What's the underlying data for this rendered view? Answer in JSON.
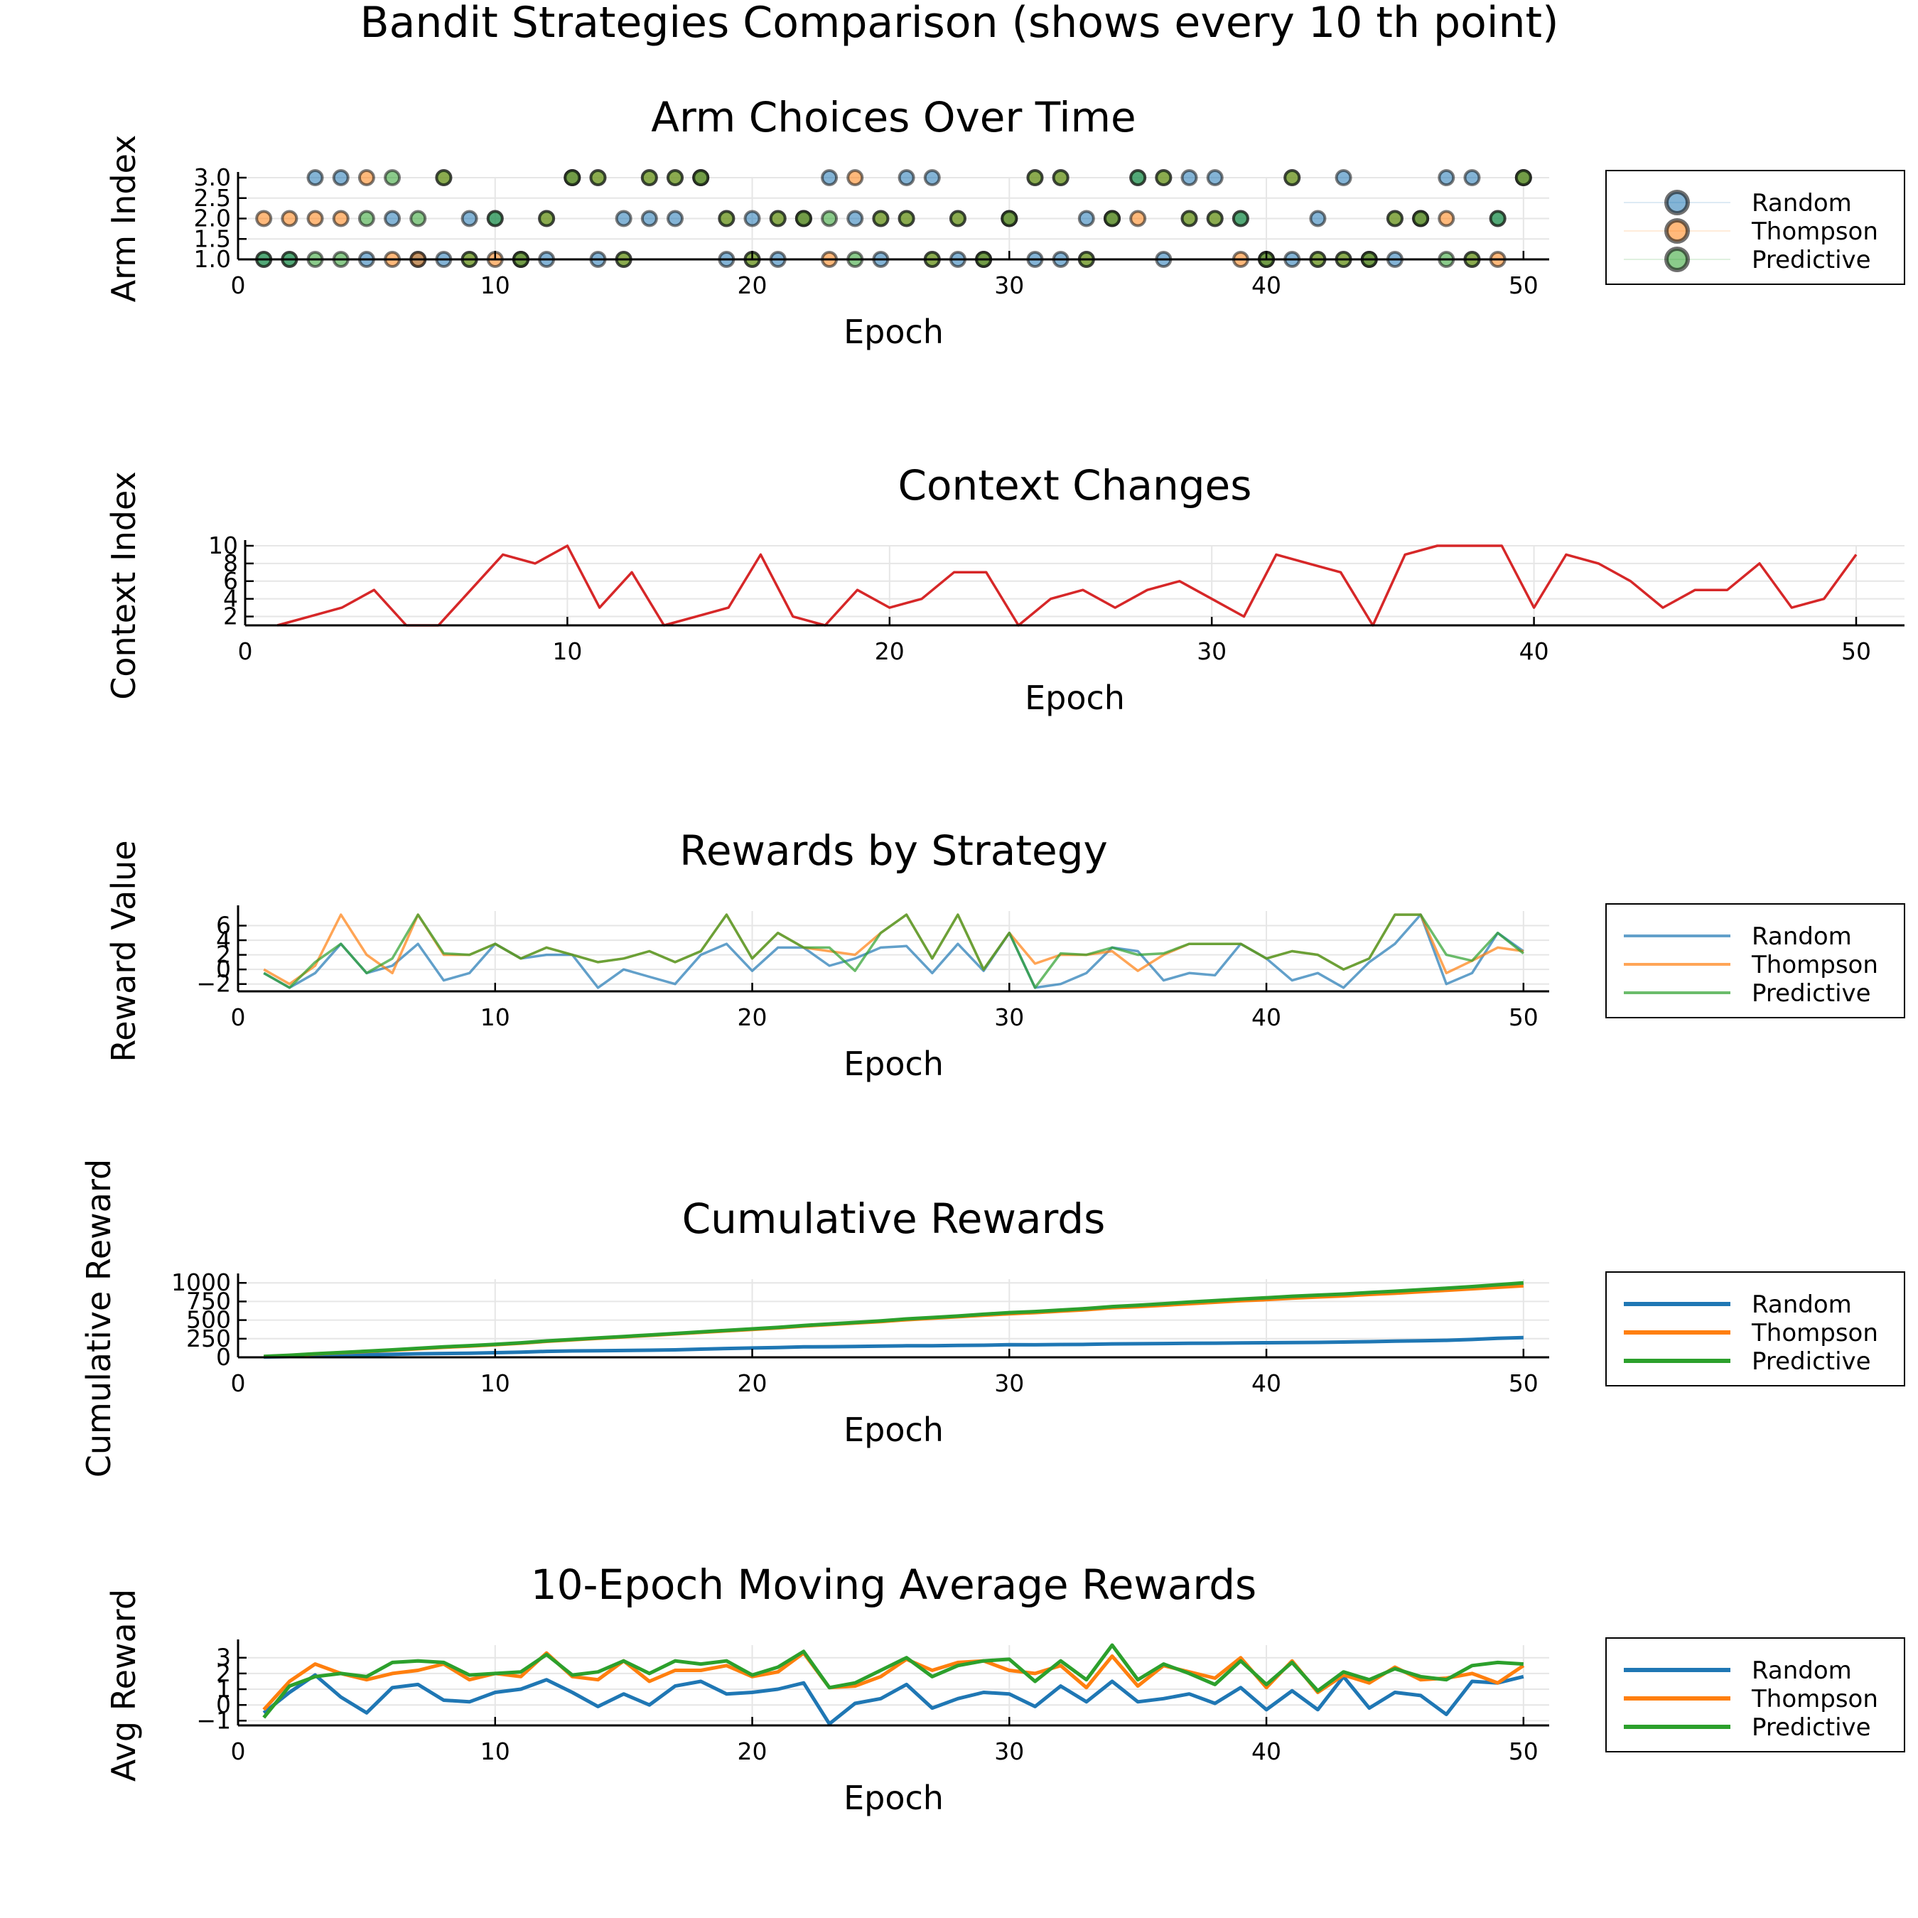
{
  "figure": {
    "title": "Bandit Strategies Comparison (shows every 10 th point)"
  },
  "colors": {
    "random": "#1f77b4",
    "thompson": "#ff7f0e",
    "predictive": "#2ca02c",
    "context": "#d62728"
  },
  "chart_data": [
    {
      "id": "arm",
      "type": "scatter",
      "title": "Arm Choices Over Time",
      "xlabel": "Epoch",
      "ylabel": "Arm Index",
      "xlim": [
        0,
        51
      ],
      "ylim": [
        1.0,
        3.0
      ],
      "xticks": [
        0,
        10,
        20,
        30,
        40,
        50
      ],
      "yticks": [
        1.0,
        1.5,
        2.0,
        2.5,
        3.0
      ],
      "ytick_labels": [
        "1.0",
        "1.5",
        "2.0",
        "2.5",
        "3.0"
      ],
      "legend": "right",
      "grid": true,
      "x": [
        1,
        2,
        3,
        4,
        5,
        6,
        7,
        8,
        9,
        10,
        11,
        12,
        13,
        14,
        15,
        16,
        17,
        18,
        19,
        20,
        21,
        22,
        23,
        24,
        25,
        26,
        27,
        28,
        29,
        30,
        31,
        32,
        33,
        34,
        35,
        36,
        37,
        38,
        39,
        40,
        41,
        42,
        43,
        44,
        45,
        46,
        47,
        48,
        49,
        50
      ],
      "series": [
        {
          "name": "Random",
          "color": "#1f77b4",
          "values": [
            1,
            1,
            3,
            3,
            1,
            2,
            1,
            1,
            2,
            2,
            1,
            1,
            3,
            1,
            2,
            2,
            2,
            3,
            1,
            2,
            1,
            2,
            3,
            2,
            1,
            3,
            3,
            1,
            1,
            2,
            1,
            1,
            2,
            2,
            3,
            1,
            3,
            3,
            2,
            1,
            1,
            2,
            3,
            1,
            1,
            2,
            3,
            3,
            2,
            3
          ]
        },
        {
          "name": "Thompson",
          "color": "#ff7f0e",
          "values": [
            2,
            2,
            2,
            2,
            3,
            1,
            1,
            3,
            1,
            1,
            1,
            2,
            3,
            3,
            1,
            3,
            3,
            3,
            2,
            1,
            2,
            2,
            1,
            3,
            2,
            2,
            1,
            2,
            1,
            2,
            3,
            3,
            1,
            2,
            2,
            3,
            2,
            2,
            1,
            1,
            3,
            1,
            1,
            1,
            2,
            2,
            2,
            1,
            1,
            3
          ]
        },
        {
          "name": "Predictive",
          "color": "#2ca02c",
          "values": [
            1,
            1,
            1,
            1,
            2,
            3,
            2,
            3,
            1,
            2,
            1,
            2,
            3,
            3,
            1,
            3,
            3,
            3,
            2,
            1,
            2,
            2,
            2,
            1,
            2,
            2,
            1,
            2,
            1,
            2,
            3,
            3,
            1,
            2,
            3,
            3,
            2,
            2,
            2,
            1,
            3,
            1,
            1,
            1,
            2,
            2,
            1,
            1,
            2,
            3
          ]
        }
      ]
    },
    {
      "id": "context",
      "type": "line",
      "title": "Context Changes",
      "xlabel": "Epoch",
      "ylabel": "Context Index",
      "xlim": [
        0,
        51.5
      ],
      "ylim": [
        1,
        10
      ],
      "xticks": [
        0,
        10,
        20,
        30,
        40,
        50
      ],
      "yticks": [
        2,
        4,
        6,
        8,
        10
      ],
      "grid": true,
      "x": [
        1,
        2,
        3,
        4,
        5,
        6,
        7,
        8,
        9,
        10,
        11,
        12,
        13,
        14,
        15,
        16,
        17,
        18,
        19,
        20,
        21,
        22,
        23,
        24,
        25,
        26,
        27,
        28,
        29,
        30,
        31,
        32,
        33,
        34,
        35,
        36,
        37,
        38,
        39,
        40,
        41,
        42,
        43,
        44,
        45,
        46,
        47,
        48,
        49,
        50
      ],
      "series": [
        {
          "color": "#d62728",
          "values": [
            1,
            2,
            3,
            5,
            1,
            1,
            5,
            9,
            8,
            10,
            3,
            7,
            1,
            2,
            3,
            9,
            2,
            1,
            5,
            3,
            4,
            7,
            7,
            1,
            4,
            5,
            3,
            5,
            6,
            4,
            2,
            9,
            8,
            7,
            1,
            9,
            10,
            10,
            10,
            3,
            9,
            8,
            6,
            3,
            5,
            5,
            8,
            3,
            4,
            9
          ]
        }
      ]
    },
    {
      "id": "rewards",
      "type": "line",
      "title": "Rewards by Strategy",
      "xlabel": "Epoch",
      "ylabel": "Reward Value",
      "xlim": [
        0,
        51
      ],
      "ylim": [
        -3,
        8
      ],
      "xticks": [
        0,
        10,
        20,
        30,
        40,
        50
      ],
      "yticks": [
        -2,
        0,
        2,
        4,
        6
      ],
      "legend": "right",
      "grid": true,
      "x": [
        1,
        2,
        3,
        4,
        5,
        6,
        7,
        8,
        9,
        10,
        11,
        12,
        13,
        14,
        15,
        16,
        17,
        18,
        19,
        20,
        21,
        22,
        23,
        24,
        25,
        26,
        27,
        28,
        29,
        30,
        31,
        32,
        33,
        34,
        35,
        36,
        37,
        38,
        39,
        40,
        41,
        42,
        43,
        44,
        45,
        46,
        47,
        48,
        49,
        50
      ],
      "series": [
        {
          "name": "Random",
          "color": "#1f77b4",
          "values": [
            -0.5,
            -2.5,
            -0.5,
            3.5,
            -0.5,
            0.5,
            3.5,
            -1.5,
            -0.5,
            3.5,
            1.5,
            2,
            2,
            -2.5,
            0,
            -1,
            -2,
            2,
            3.5,
            -0.2,
            3,
            3,
            0.5,
            1.5,
            3,
            3.2,
            -0.5,
            3.5,
            -0.2,
            5,
            -2.5,
            -2,
            -0.5,
            3,
            2.5,
            -1.5,
            -0.5,
            -0.8,
            3.5,
            1.5,
            -1.5,
            -0.5,
            -2.5,
            1,
            3.5,
            7.5,
            -2,
            -0.5,
            5,
            2.5
          ]
        },
        {
          "name": "Thompson",
          "color": "#ff7f0e",
          "values": [
            0,
            -2,
            0.5,
            7.5,
            2,
            -0.5,
            7.5,
            2,
            2,
            3.5,
            1.5,
            3,
            2,
            1,
            1.5,
            2.5,
            1,
            2.5,
            7.5,
            1.5,
            5,
            3,
            2.5,
            2,
            5,
            7.5,
            1.5,
            7.5,
            0,
            5,
            0.8,
            2,
            2,
            2.5,
            -0.2,
            2,
            3.5,
            3.5,
            3.5,
            1.5,
            2.5,
            2,
            0,
            1.5,
            7.5,
            7.5,
            -0.5,
            1.2,
            3,
            2.5
          ]
        },
        {
          "name": "Predictive",
          "color": "#2ca02c",
          "values": [
            -0.5,
            -2.5,
            1,
            3.5,
            -0.5,
            1.5,
            7.5,
            2.2,
            2,
            3.5,
            1.5,
            3,
            2,
            1,
            1.5,
            2.5,
            1,
            2.5,
            7.5,
            1.5,
            5,
            3,
            3,
            -0.2,
            5,
            7.5,
            1.5,
            7.5,
            0,
            5,
            -2.5,
            2.2,
            2,
            3,
            2,
            2.2,
            3.5,
            3.5,
            3.5,
            1.5,
            2.5,
            2,
            0,
            1.5,
            7.5,
            7.5,
            2,
            1.2,
            5,
            2.2
          ]
        }
      ]
    },
    {
      "id": "cumulative",
      "type": "line",
      "title": "Cumulative Rewards",
      "xlabel": "Epoch",
      "ylabel": "Cumulative Reward",
      "xlim": [
        0,
        51
      ],
      "ylim": [
        0,
        1050
      ],
      "xticks": [
        0,
        10,
        20,
        30,
        40,
        50
      ],
      "yticks": [
        0,
        250,
        500,
        750,
        1000
      ],
      "legend": "right",
      "grid": true,
      "x": [
        1,
        2,
        3,
        4,
        5,
        6,
        7,
        8,
        9,
        10,
        11,
        12,
        13,
        14,
        15,
        16,
        17,
        18,
        19,
        20,
        21,
        22,
        23,
        24,
        25,
        26,
        27,
        28,
        29,
        30,
        31,
        32,
        33,
        34,
        35,
        36,
        37,
        38,
        39,
        40,
        41,
        42,
        43,
        44,
        45,
        46,
        47,
        48,
        49,
        50
      ],
      "series": [
        {
          "name": "Random",
          "color": "#1f77b4",
          "values": [
            5,
            10,
            18,
            30,
            35,
            40,
            48,
            52,
            55,
            62,
            70,
            80,
            86,
            88,
            92,
            95,
            100,
            110,
            118,
            125,
            132,
            140,
            142,
            145,
            150,
            155,
            156,
            160,
            162,
            170,
            168,
            172,
            174,
            180,
            182,
            185,
            188,
            190,
            194,
            196,
            198,
            200,
            205,
            210,
            218,
            222,
            228,
            240,
            255,
            265
          ]
        },
        {
          "name": "Thompson",
          "color": "#ff7f0e",
          "values": [
            10,
            25,
            45,
            62,
            78,
            95,
            115,
            135,
            150,
            170,
            190,
            215,
            235,
            255,
            275,
            295,
            315,
            335,
            355,
            375,
            395,
            420,
            440,
            460,
            480,
            505,
            525,
            545,
            565,
            585,
            600,
            620,
            640,
            665,
            680,
            700,
            720,
            740,
            760,
            775,
            795,
            810,
            825,
            845,
            860,
            880,
            900,
            920,
            940,
            960
          ]
        },
        {
          "name": "Predictive",
          "color": "#2ca02c",
          "values": [
            12,
            28,
            48,
            65,
            82,
            100,
            120,
            140,
            157,
            175,
            195,
            220,
            240,
            260,
            280,
            300,
            320,
            342,
            362,
            382,
            402,
            428,
            448,
            468,
            490,
            515,
            535,
            555,
            578,
            600,
            615,
            635,
            655,
            682,
            700,
            720,
            742,
            762,
            782,
            800,
            820,
            835,
            850,
            870,
            888,
            908,
            928,
            950,
            975,
            1000
          ]
        }
      ]
    },
    {
      "id": "moving",
      "type": "line",
      "title": "10-Epoch Moving Average Rewards",
      "xlabel": "Epoch",
      "ylabel": "Avg Reward",
      "xlim": [
        0,
        51
      ],
      "ylim": [
        -1.3,
        3.8
      ],
      "xticks": [
        0,
        10,
        20,
        30,
        40,
        50
      ],
      "yticks": [
        -1,
        0,
        1,
        2,
        3
      ],
      "legend": "right",
      "grid": true,
      "x": [
        1,
        2,
        3,
        4,
        5,
        6,
        7,
        8,
        9,
        10,
        11,
        12,
        13,
        14,
        15,
        16,
        17,
        18,
        19,
        20,
        21,
        22,
        23,
        24,
        25,
        26,
        27,
        28,
        29,
        30,
        31,
        32,
        33,
        34,
        35,
        36,
        37,
        38,
        39,
        40,
        41,
        42,
        43,
        44,
        45,
        46,
        47,
        48,
        49,
        50
      ],
      "series": [
        {
          "name": "Random",
          "color": "#1f77b4",
          "values": [
            -0.5,
            0.8,
            1.9,
            0.5,
            -0.5,
            1.1,
            1.3,
            0.3,
            0.2,
            0.8,
            1,
            1.6,
            0.8,
            -0.1,
            0.7,
            0,
            1.2,
            1.5,
            0.7,
            0.8,
            1,
            1.4,
            -1.2,
            0.1,
            0.4,
            1.3,
            -0.2,
            0.4,
            0.8,
            0.7,
            -0.1,
            1.2,
            0.2,
            1.5,
            0.2,
            0.4,
            0.7,
            0.1,
            1.1,
            -0.3,
            0.9,
            -0.3,
            1.8,
            -0.2,
            0.8,
            0.6,
            -0.6,
            1.5,
            1.4,
            1.8
          ]
        },
        {
          "name": "Thompson",
          "color": "#ff7f0e",
          "values": [
            -0.3,
            1.5,
            2.6,
            2,
            1.6,
            2,
            2.2,
            2.6,
            1.6,
            2,
            1.8,
            3.3,
            1.8,
            1.6,
            2.8,
            1.5,
            2.2,
            2.2,
            2.5,
            1.8,
            2.1,
            3.3,
            1.1,
            1.2,
            1.8,
            2.9,
            2.2,
            2.7,
            2.8,
            2.2,
            2,
            2.5,
            1.1,
            3.1,
            1.2,
            2.5,
            2.1,
            1.7,
            3.0,
            1.1,
            2.8,
            0.8,
            1.9,
            1.4,
            2.4,
            1.6,
            1.7,
            2.0,
            1.4,
            2.5
          ]
        },
        {
          "name": "Predictive",
          "color": "#2ca02c",
          "values": [
            -0.8,
            1.2,
            1.8,
            2,
            1.8,
            2.7,
            2.8,
            2.7,
            1.9,
            2,
            2.1,
            3.2,
            1.9,
            2.1,
            2.8,
            2,
            2.8,
            2.6,
            2.8,
            1.9,
            2.4,
            3.4,
            1.1,
            1.4,
            2.2,
            3,
            1.8,
            2.5,
            2.8,
            2.9,
            1.5,
            2.8,
            1.6,
            3.8,
            1.6,
            2.6,
            2,
            1.3,
            2.8,
            1.3,
            2.7,
            0.9,
            2.1,
            1.6,
            2.3,
            1.8,
            1.6,
            2.5,
            2.7,
            2.6
          ]
        }
      ]
    }
  ]
}
